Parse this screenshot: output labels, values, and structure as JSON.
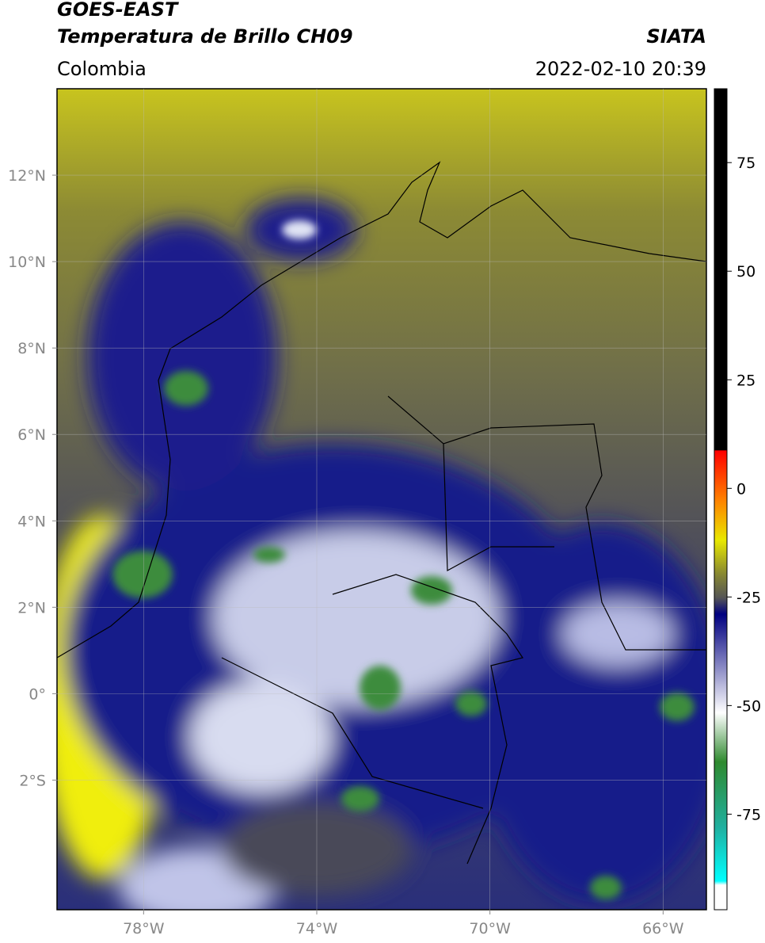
{
  "header": {
    "title_line1": "GOES-EAST",
    "title_line2": "Temperatura de Brillo CH09",
    "source": "SIATA",
    "region": "Colombia",
    "datetime": "2022-02-10 20:39"
  },
  "map": {
    "lonlim": [
      -80,
      -65
    ],
    "latlim": [
      -5,
      14
    ],
    "lon_ticks": [
      {
        "value": -78,
        "label": "78°W"
      },
      {
        "value": -74,
        "label": "74°W"
      },
      {
        "value": -70,
        "label": "70°W"
      },
      {
        "value": -66,
        "label": "66°W"
      }
    ],
    "lat_ticks": [
      {
        "value": 12,
        "label": "12°N"
      },
      {
        "value": 10,
        "label": "10°N"
      },
      {
        "value": 8,
        "label": "8°N"
      },
      {
        "value": 6,
        "label": "6°N"
      },
      {
        "value": 4,
        "label": "4°N"
      },
      {
        "value": 2,
        "label": "2°N"
      },
      {
        "value": 0,
        "label": "0°"
      },
      {
        "value": -2,
        "label": "2°S"
      }
    ]
  },
  "colorbar": {
    "lim": [
      -97,
      92
    ],
    "ticks": [
      75,
      50,
      25,
      0,
      -25,
      -50,
      -75
    ]
  }
}
